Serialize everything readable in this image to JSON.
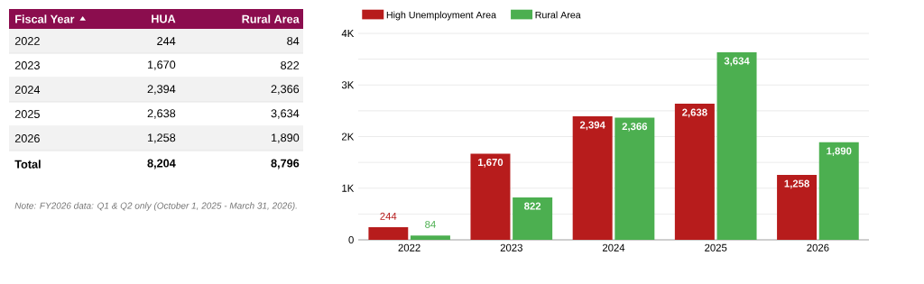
{
  "chart_data": {
    "type": "bar",
    "categories": [
      "2022",
      "2023",
      "2024",
      "2025",
      "2026"
    ],
    "series": [
      {
        "name": "High Unemployment Area",
        "color": "#b71c1c",
        "values": [
          244,
          1670,
          2394,
          2638,
          1258
        ],
        "value_labels": [
          "244",
          "1,670",
          "2,394",
          "2,638",
          "1,258"
        ]
      },
      {
        "name": "Rural Area",
        "color": "#4caf50",
        "values": [
          84,
          822,
          2366,
          3634,
          1890
        ],
        "value_labels": [
          "84",
          "822",
          "2,366",
          "3,634",
          "1,890"
        ]
      }
    ],
    "ylim": [
      0,
      4000
    ],
    "yticks": [
      {
        "value": 0,
        "label": "0"
      },
      {
        "value": 500,
        "label": null
      },
      {
        "value": 1000,
        "label": "1K"
      },
      {
        "value": 1500,
        "label": null
      },
      {
        "value": 2000,
        "label": "2K"
      },
      {
        "value": 2500,
        "label": null
      },
      {
        "value": 3000,
        "label": "3K"
      },
      {
        "value": 3500,
        "label": null
      },
      {
        "value": 4000,
        "label": "4K"
      }
    ],
    "grid": "y",
    "legend": "top left",
    "annotations": [
      "Fiscal Year",
      "HUA",
      "Total",
      "8,204",
      "8,796",
      "Note: FY2026 data: Q1 & Q2 only (October 1, 2025 - March 31, 2026)."
    ]
  }
}
